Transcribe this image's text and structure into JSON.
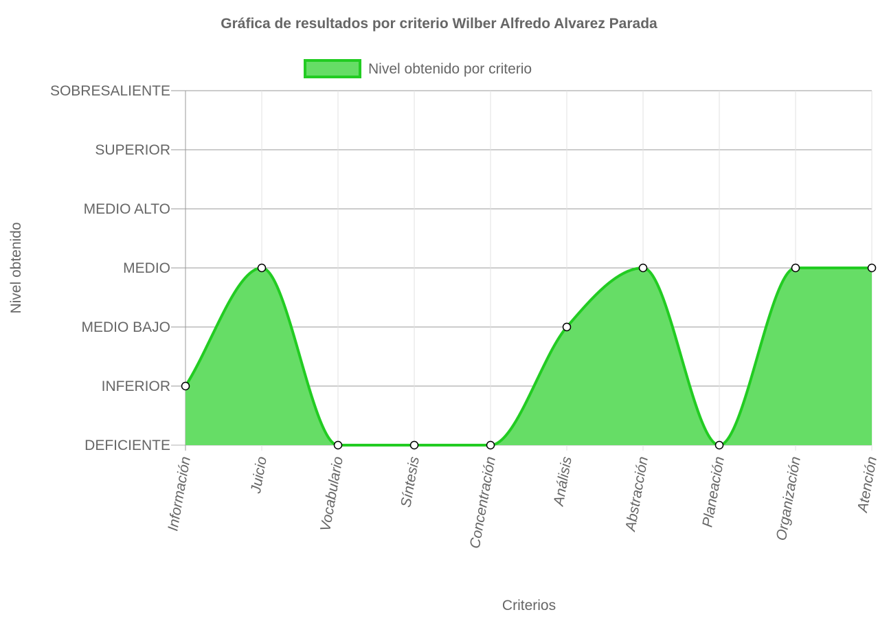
{
  "chart_data": {
    "type": "area",
    "title": "Gráfica de resultados por criterio Wilber  Alfredo Alvarez Parada",
    "xlabel": "Criterios",
    "ylabel": "Nivel obtenido",
    "categories": [
      "Información",
      "Juicio",
      "Vocabulario",
      "Síntesis",
      "Concentración",
      "Análisis",
      "Abstracción",
      "Planeación",
      "Organización",
      "Atención"
    ],
    "y_levels": [
      "DEFICIENTE",
      "INFERIOR",
      "MEDIO BAJO",
      "MEDIO",
      "MEDIO ALTO",
      "SUPERIOR",
      "SOBRESALIENTE"
    ],
    "ylim": [
      0,
      6
    ],
    "series": [
      {
        "name": "Nivel obtenido por criterio",
        "values": [
          1,
          3,
          0,
          0,
          0,
          2,
          3,
          0,
          3,
          3
        ],
        "color": "#22cc22",
        "fill": "#66dd66"
      }
    ],
    "legend_position": "top-center",
    "grid": true
  }
}
